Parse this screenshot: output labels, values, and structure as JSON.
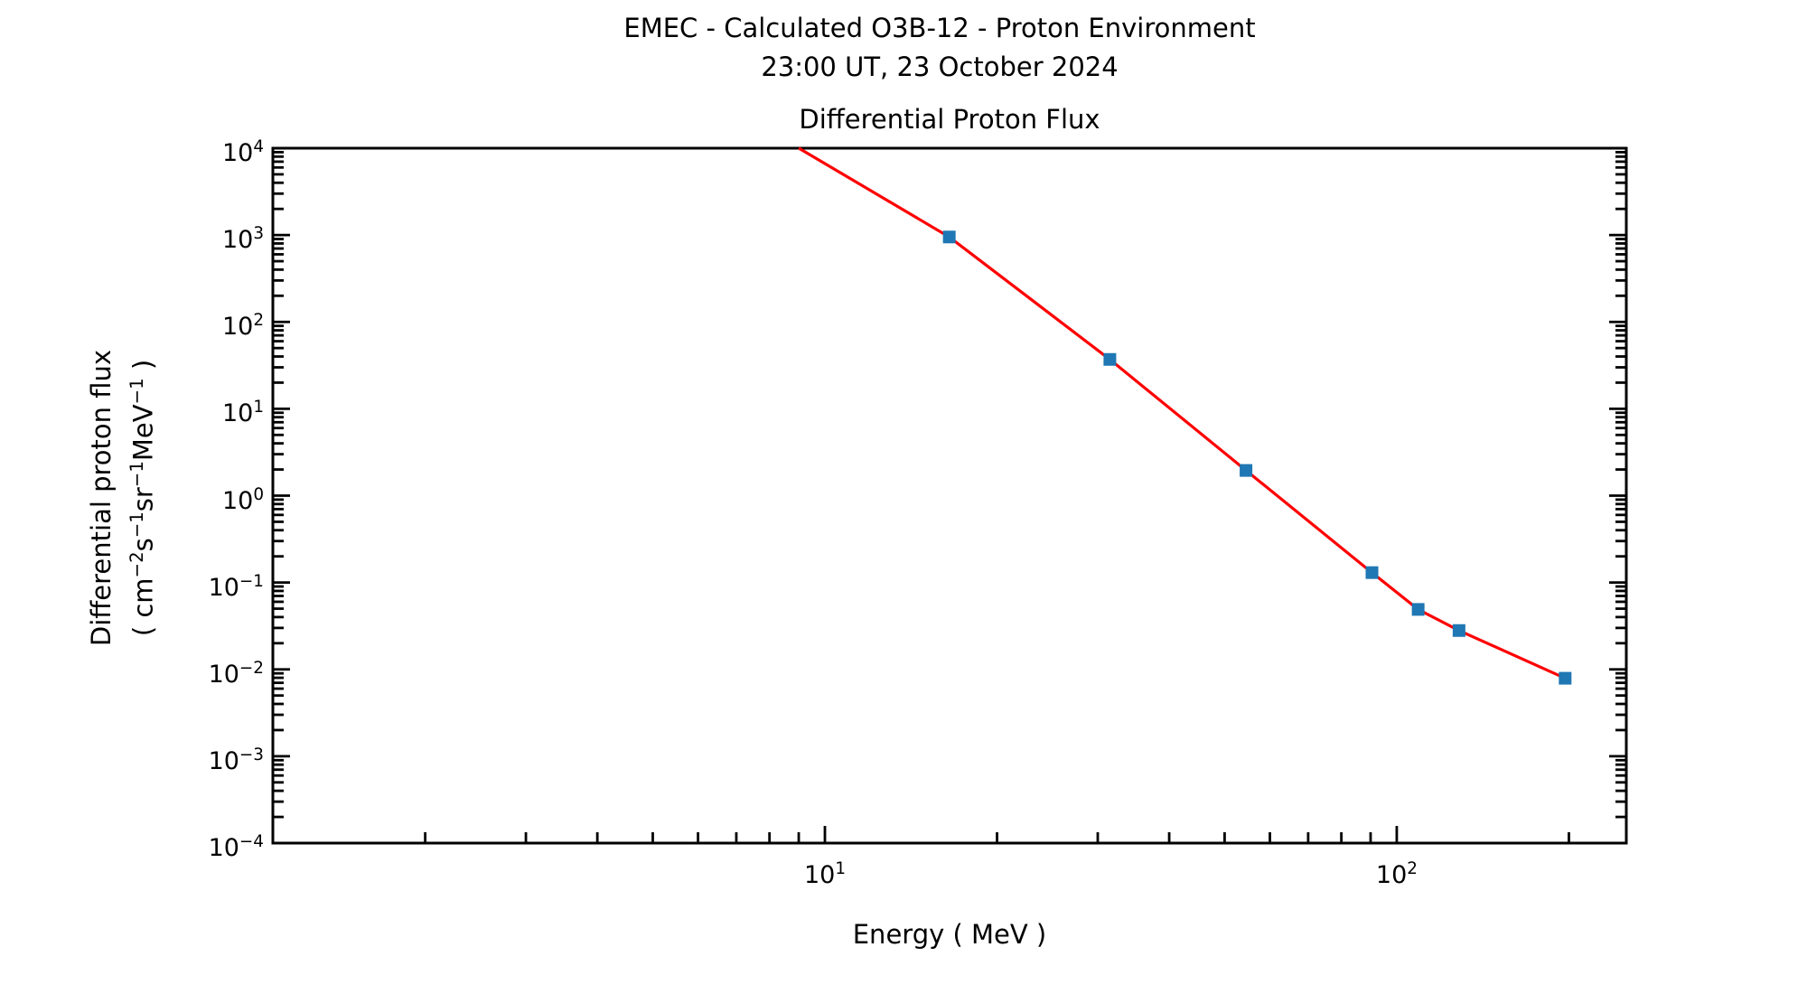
{
  "chart_data": {
    "type": "line",
    "suptitle_line1": "EMEC - Calculated O3B-12 - Proton Environment",
    "suptitle_line2": "23:00 UT, 23 October 2024",
    "title": "Differential Proton Flux",
    "xlabel": "Energy ( MeV )",
    "ylabel_line1": "Differential proton flux",
    "ylabel_line2_segments": [
      [
        "( cm",
        false
      ],
      [
        "−2",
        true
      ],
      [
        "s",
        false
      ],
      [
        "−1",
        true
      ],
      [
        "sr",
        false
      ],
      [
        "−1",
        true
      ],
      [
        "MeV",
        false
      ],
      [
        "−1",
        true
      ],
      [
        " )",
        false
      ]
    ],
    "xscale": "log",
    "yscale": "log",
    "xlim": [
      1.083,
      252
    ],
    "ylim": [
      0.0001,
      10000
    ],
    "grid": false,
    "legend": false,
    "x_major_ticks": [
      10,
      100
    ],
    "x_major_tick_exponents": [
      1,
      2
    ],
    "y_major_tick_exponents": [
      4,
      3,
      2,
      1,
      0,
      -1,
      -2,
      -3,
      -4
    ],
    "line_color": "#ff0000",
    "marker_color": "#1f77b4",
    "axis_color": "#000000",
    "series": [
      {
        "name": "differential proton flux",
        "x": [
          16.5,
          31.5,
          54.5,
          90.5,
          109,
          128.5,
          197
        ],
        "y": [
          950,
          37,
          1.95,
          0.13,
          0.049,
          0.028,
          0.0079
        ],
        "line_entry_point": {
          "x": 9.0,
          "y": 10000
        },
        "note": "curve enters plot clipped at top edge (1e4) near 9 MeV"
      }
    ]
  }
}
